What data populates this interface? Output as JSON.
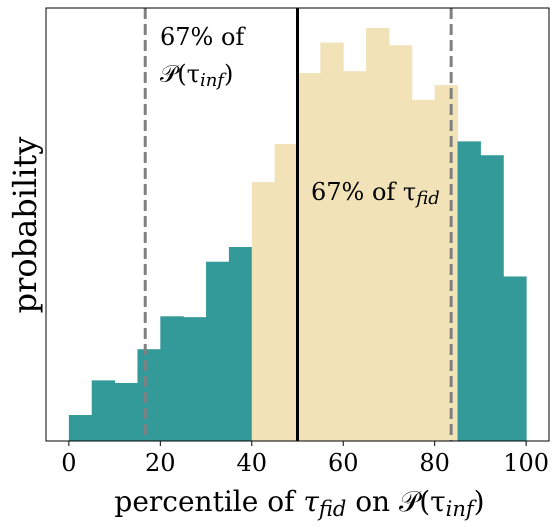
{
  "chart_data": {
    "type": "histogram",
    "ylabel": "probability",
    "xlabel": [
      {
        "text": "percentile of "
      },
      {
        "text": "τ",
        "italic": true
      },
      {
        "text": "fid",
        "sub": true
      },
      {
        "text": " on "
      },
      {
        "text": "𝒫(τ"
      },
      {
        "text": "inf",
        "sub": true
      },
      {
        "text": ")"
      }
    ],
    "bins": [
      0,
      5,
      10,
      15,
      20,
      25,
      30,
      35,
      40,
      45,
      50,
      55,
      60,
      65,
      70,
      75,
      80,
      85,
      90,
      95,
      100
    ],
    "values": [
      0.003,
      0.007,
      0.0067,
      0.0106,
      0.0144,
      0.0143,
      0.0207,
      0.0224,
      0.0299,
      0.0343,
      0.0425,
      0.046,
      0.0427,
      0.0477,
      0.0457,
      0.0394,
      0.0411,
      0.0346,
      0.033,
      0.019
    ],
    "colors": [
      "#339a99",
      "#339a99",
      "#339a99",
      "#339a99",
      "#339a99",
      "#339a99",
      "#339a99",
      "#339a99",
      "#f2e2b8",
      "#f2e2b8",
      "#f2e2b8",
      "#f2e2b8",
      "#f2e2b8",
      "#f2e2b8",
      "#f2e2b8",
      "#f2e2b8",
      "#f2e2b8",
      "#339a99",
      "#339a99",
      "#339a99"
    ],
    "xlim": [
      -5,
      105
    ],
    "ylim": [
      0,
      0.05
    ],
    "xticks": [
      0,
      20,
      40,
      60,
      80,
      100
    ],
    "vlines": [
      {
        "x": 16.7,
        "style": "dashed",
        "color": "#808080"
      },
      {
        "x": 50,
        "style": "solid",
        "color": "#000000"
      },
      {
        "x": 83.6,
        "style": "dashed",
        "color": "#808080"
      }
    ],
    "annotations": [
      {
        "parts": [
          {
            "text": "67% of"
          }
        ],
        "color": "#808080"
      },
      {
        "parts": [
          {
            "text": "𝒫(τ"
          },
          {
            "text": "inf",
            "sub": true
          },
          {
            "text": ")"
          }
        ],
        "color": "#808080"
      },
      {
        "parts": [
          {
            "text": "67% of τ"
          },
          {
            "text": "fid",
            "sub": true
          }
        ],
        "color": "#c08a00"
      }
    ]
  }
}
